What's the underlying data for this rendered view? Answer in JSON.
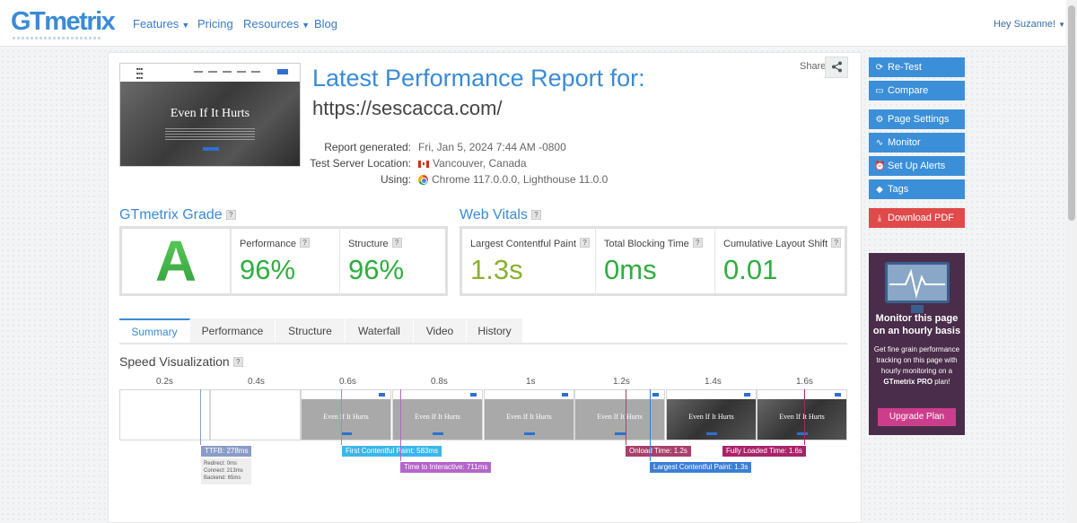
{
  "nav": {
    "logo": "GTmetrix",
    "items": [
      {
        "label": "Features",
        "caret": true
      },
      {
        "label": "Pricing",
        "caret": false
      },
      {
        "label": "Resources",
        "caret": true
      },
      {
        "label": "Blog",
        "caret": false
      }
    ],
    "user": "Hey Suzanne!"
  },
  "report": {
    "title": "Latest Performance Report for:",
    "url": "https://sescacca.com/",
    "share_label": "Share",
    "thumbnail_title": "Even If It Hurts",
    "info": [
      {
        "label": "Report generated:",
        "value": "Fri, Jan 5, 2024 7:44 AM -0800"
      },
      {
        "label": "Test Server Location:",
        "value": "Vancouver, Canada"
      },
      {
        "label": "Using:",
        "value": "Chrome 117.0.0.0, Lighthouse 11.0.0"
      }
    ]
  },
  "grade": {
    "title": "GTmetrix Grade",
    "letter": "A",
    "performance_label": "Performance",
    "performance_value": "96%",
    "structure_label": "Structure",
    "structure_value": "96%"
  },
  "vitals": {
    "title": "Web Vitals",
    "items": [
      {
        "label": "Largest Contentful Paint",
        "value": "1.3s"
      },
      {
        "label": "Total Blocking Time",
        "value": "0ms"
      },
      {
        "label": "Cumulative Layout Shift",
        "value": "0.01"
      }
    ]
  },
  "tabs": [
    "Summary",
    "Performance",
    "Structure",
    "Waterfall",
    "Video",
    "History"
  ],
  "speed": {
    "title": "Speed Visualization",
    "times": [
      "0.2s",
      "0.4s",
      "0.6s",
      "0.8s",
      "1s",
      "1.2s",
      "1.4s",
      "1.6s"
    ],
    "frame_title": "Even If It Hurts",
    "markers": {
      "ttfb": "TTFB: 278ms",
      "fcp": "First Contentful Paint: 583ms",
      "tti": "Time to Interactive: 711ms",
      "onload": "Onload Time: 1.2s",
      "lcp": "Largest Contentful Paint: 1.3s",
      "fully": "Fully Loaded Time: 1.6s"
    },
    "ttfb_details": [
      "Redirect: 0ms",
      "Connect: 213ms",
      "Backend: 65ms"
    ]
  },
  "sidebar": {
    "buttons": [
      "Re-Test",
      "Compare",
      "Page Settings",
      "Monitor",
      "Set Up Alerts",
      "Tags",
      "Download PDF"
    ],
    "promo_heading": "Monitor this page on an hourly basis",
    "promo_text_1": "Get fine grain performance tracking on this page with hourly monitoring on a",
    "promo_text_2": "GTmetrix PRO",
    "promo_text_3": " plan!",
    "promo_button": "Upgrade Plan"
  },
  "colors": {
    "accent": "#3a8bd6",
    "grade_green": "#3cb34a",
    "lcp_value": "#8bb02c",
    "download_pdf": "#e04a4a",
    "promo_bg": "#4a2d4a",
    "promo_button": "#cc3e8b"
  }
}
